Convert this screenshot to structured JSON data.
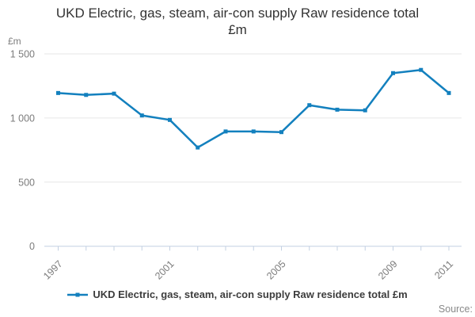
{
  "title": {
    "line1": "UKD Electric, gas, steam, air-con supply Raw residence total",
    "line2": "£m"
  },
  "axes": {
    "y_unit": "£m",
    "ytick_labels": [
      "0",
      "500",
      "1 000",
      "1 500"
    ],
    "xtick_labels_shown": [
      "1997",
      "2001",
      "2005",
      "2009",
      "2011"
    ]
  },
  "legend": {
    "label": "UKD Electric, gas, steam, air-con supply Raw residence total £m"
  },
  "footer": {
    "source_label": "Source:"
  },
  "colors": {
    "line": "#1380be",
    "grid": "#e6e6e6",
    "axis": "#c3d0e2",
    "tick_text": "#7c7c7c",
    "title_text": "#333333",
    "legend_text": "#3d3d3d",
    "source_text": "#888888"
  },
  "chart_data": {
    "type": "line",
    "title": "UKD Electric, gas, steam, air-con supply Raw residence total £m",
    "x": [
      1997,
      1998,
      1999,
      2000,
      2001,
      2002,
      2003,
      2004,
      2005,
      2006,
      2007,
      2008,
      2009,
      2010,
      2011
    ],
    "series": [
      {
        "name": "UKD Electric, gas, steam, air-con supply Raw residence total £m",
        "values": [
          1195,
          1180,
          1190,
          1020,
          985,
          770,
          895,
          895,
          890,
          1100,
          1065,
          1060,
          1350,
          1375,
          1195
        ]
      }
    ],
    "xlabel": "",
    "ylabel": "£m",
    "ylim": [
      0,
      1500
    ],
    "yticks": [
      0,
      500,
      1000,
      1500
    ],
    "labeled_x_ticks": [
      1997,
      2001,
      2005,
      2009,
      2011
    ],
    "grid": "horizontal",
    "legend_position": "bottom",
    "marker": "square"
  }
}
